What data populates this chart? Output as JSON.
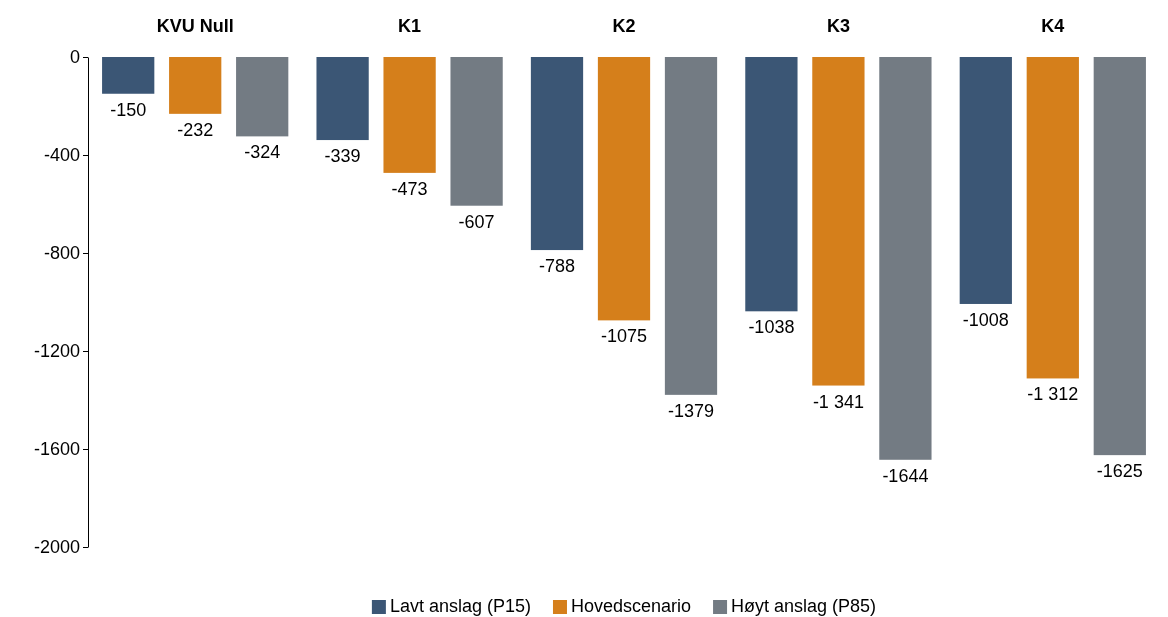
{
  "chart_data": {
    "type": "bar",
    "categories": [
      "KVU Null",
      "K1",
      "K2",
      "K3",
      "K4"
    ],
    "series": [
      {
        "name": "Lavt anslag (P15)",
        "color": "#3b5675",
        "values": [
          -150,
          -339,
          -788,
          -1038,
          -1008
        ],
        "value_labels": [
          "-150",
          "-339",
          "-788",
          "-1038",
          "-1008"
        ]
      },
      {
        "name": "Hovedscenario",
        "color": "#d57f1b",
        "values": [
          -232,
          -473,
          -1075,
          -1341,
          -1312
        ],
        "value_labels": [
          "-232",
          "-473",
          "-1075",
          "-1 341",
          "-1 312"
        ]
      },
      {
        "name": "Høyt anslag (P85)",
        "color": "#737b83",
        "values": [
          -324,
          -607,
          -1379,
          -1644,
          -1625
        ],
        "value_labels": [
          "-324",
          "-607",
          "-1379",
          "-1644",
          "-1625"
        ]
      }
    ],
    "ylim": [
      -2000,
      0
    ],
    "yticks": [
      0,
      -400,
      -800,
      -1200,
      -1600,
      -2000
    ],
    "grid": false,
    "legend": "bottom"
  }
}
